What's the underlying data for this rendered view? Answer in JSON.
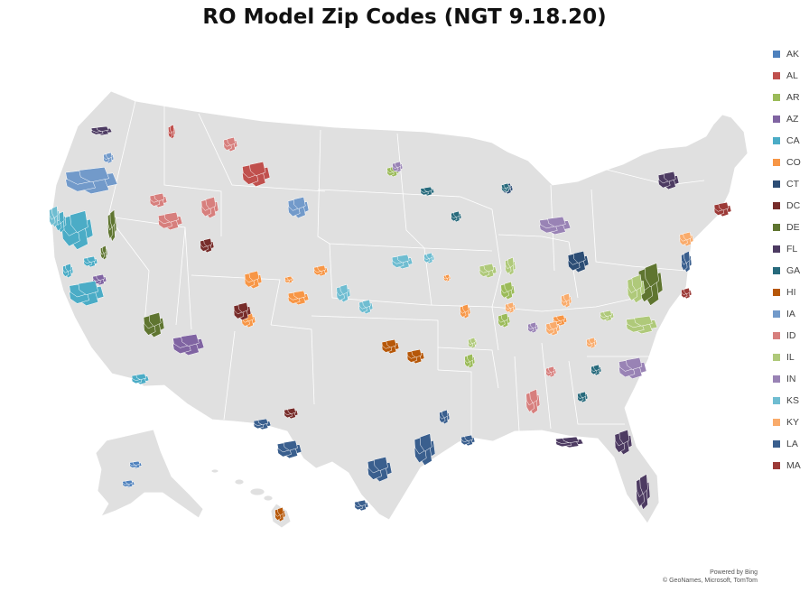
{
  "title": "RO Model Zip Codes (NGT 9.18.20)",
  "legend": [
    {
      "code": "AK",
      "color": "#4E81BD"
    },
    {
      "code": "AL",
      "color": "#C0504D"
    },
    {
      "code": "AR",
      "color": "#9BBB59"
    },
    {
      "code": "AZ",
      "color": "#8064A2"
    },
    {
      "code": "CA",
      "color": "#4BACC6"
    },
    {
      "code": "CO",
      "color": "#F79646"
    },
    {
      "code": "CT",
      "color": "#2C4D75"
    },
    {
      "code": "DC",
      "color": "#772C2A"
    },
    {
      "code": "DE",
      "color": "#5F7530"
    },
    {
      "code": "FL",
      "color": "#4D3B62"
    },
    {
      "code": "GA",
      "color": "#276A7C"
    },
    {
      "code": "HI",
      "color": "#B65708"
    },
    {
      "code": "IA",
      "color": "#729ACA"
    },
    {
      "code": "ID",
      "color": "#D77F7D"
    },
    {
      "code": "IL",
      "color": "#AFC97A"
    },
    {
      "code": "IN",
      "color": "#9983B5"
    },
    {
      "code": "KS",
      "color": "#6FBDD1"
    },
    {
      "code": "KY",
      "color": "#F9AB6B"
    },
    {
      "code": "LA",
      "color": "#3A5F8E"
    },
    {
      "code": "MA",
      "color": "#9C3A37"
    }
  ],
  "attribution": {
    "line1": "Powered by Bing",
    "line2": "© GeoNames, Microsoft, TomTom"
  },
  "map": {
    "land_color": "#E0E0E0",
    "border_color": "#FFFFFF",
    "regions": [
      "contiguous-us",
      "alaska",
      "hawaii"
    ],
    "zip_clusters": [
      {
        "code": "AK"
      },
      {
        "code": "AK"
      },
      {
        "code": "AL"
      },
      {
        "code": "AL"
      },
      {
        "code": "AR"
      },
      {
        "code": "AR"
      },
      {
        "code": "AR"
      },
      {
        "code": "AR"
      },
      {
        "code": "AZ"
      },
      {
        "code": "AZ"
      },
      {
        "code": "CA"
      },
      {
        "code": "CA"
      },
      {
        "code": "CA"
      },
      {
        "code": "CA"
      },
      {
        "code": "CA"
      },
      {
        "code": "CA"
      },
      {
        "code": "CO"
      },
      {
        "code": "CO"
      },
      {
        "code": "CO"
      },
      {
        "code": "CO"
      },
      {
        "code": "CO"
      },
      {
        "code": "CO"
      },
      {
        "code": "CO"
      },
      {
        "code": "CO"
      },
      {
        "code": "CT"
      },
      {
        "code": "CT"
      },
      {
        "code": "DC"
      },
      {
        "code": "DC"
      },
      {
        "code": "DC"
      },
      {
        "code": "DE"
      },
      {
        "code": "DE"
      },
      {
        "code": "DE"
      },
      {
        "code": "DE"
      },
      {
        "code": "FL"
      },
      {
        "code": "FL"
      },
      {
        "code": "FL"
      },
      {
        "code": "FL"
      },
      {
        "code": "FL"
      },
      {
        "code": "GA"
      },
      {
        "code": "GA"
      },
      {
        "code": "GA"
      },
      {
        "code": "GA"
      },
      {
        "code": "GA"
      },
      {
        "code": "HI"
      },
      {
        "code": "HI"
      },
      {
        "code": "HI"
      },
      {
        "code": "IA"
      },
      {
        "code": "IA"
      },
      {
        "code": "IA"
      },
      {
        "code": "ID"
      },
      {
        "code": "ID"
      },
      {
        "code": "ID"
      },
      {
        "code": "ID"
      },
      {
        "code": "ID"
      },
      {
        "code": "ID"
      },
      {
        "code": "IL"
      },
      {
        "code": "IL"
      },
      {
        "code": "IL"
      },
      {
        "code": "IL"
      },
      {
        "code": "IL"
      },
      {
        "code": "IL"
      },
      {
        "code": "IN"
      },
      {
        "code": "IN"
      },
      {
        "code": "IN"
      },
      {
        "code": "IN"
      },
      {
        "code": "KS"
      },
      {
        "code": "KS"
      },
      {
        "code": "KS"
      },
      {
        "code": "KS"
      },
      {
        "code": "KS"
      },
      {
        "code": "KY"
      },
      {
        "code": "KY"
      },
      {
        "code": "KY"
      },
      {
        "code": "KY"
      },
      {
        "code": "KY"
      },
      {
        "code": "LA"
      },
      {
        "code": "LA"
      },
      {
        "code": "LA"
      },
      {
        "code": "LA"
      },
      {
        "code": "LA"
      },
      {
        "code": "LA"
      },
      {
        "code": "LA"
      },
      {
        "code": "LA"
      },
      {
        "code": "MA"
      },
      {
        "code": "MA"
      }
    ]
  }
}
